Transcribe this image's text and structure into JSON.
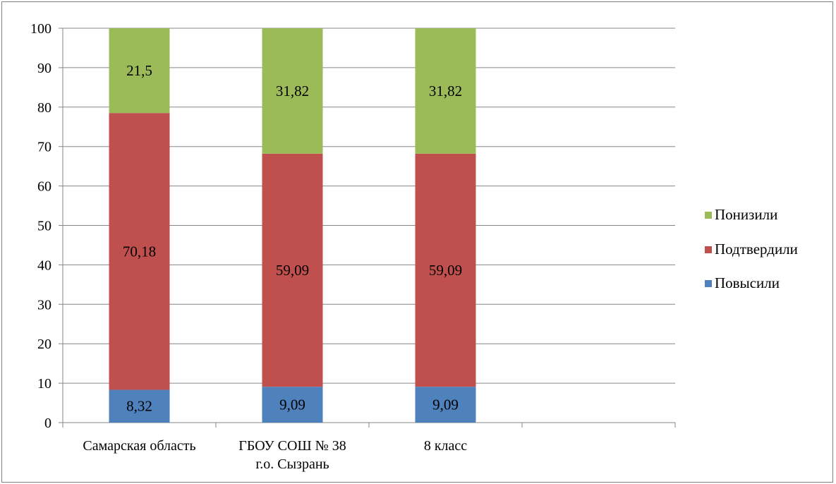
{
  "chart_data": {
    "type": "bar",
    "stacked": true,
    "title": "",
    "xlabel": "",
    "ylabel": "",
    "ylim": [
      0,
      100
    ],
    "yticks": [
      0,
      10,
      20,
      30,
      40,
      50,
      60,
      70,
      80,
      90,
      100
    ],
    "grid": true,
    "legend_position": "right",
    "categories": [
      [
        "Самарская область"
      ],
      [
        "ГБОУ СОШ № 38",
        "г.о. Сызрань"
      ],
      [
        "8 класс"
      ],
      [
        ""
      ]
    ],
    "series": [
      {
        "name": "Повысили",
        "color": "#4F81BD",
        "values": [
          8.32,
          9.09,
          9.09,
          null
        ],
        "labels": [
          "8,32",
          "9,09",
          "9,09",
          ""
        ]
      },
      {
        "name": "Подтвердили",
        "color": "#C0504D",
        "values": [
          70.18,
          59.09,
          59.09,
          null
        ],
        "labels": [
          "70,18",
          "59,09",
          "59,09",
          ""
        ]
      },
      {
        "name": "Понизили",
        "color": "#9BBB59",
        "values": [
          21.5,
          31.82,
          31.82,
          null
        ],
        "labels": [
          "21,5",
          "31,82",
          "31,82",
          ""
        ]
      }
    ],
    "legend_order": [
      "Понизили",
      "Подтвердили",
      "Повысили"
    ]
  }
}
